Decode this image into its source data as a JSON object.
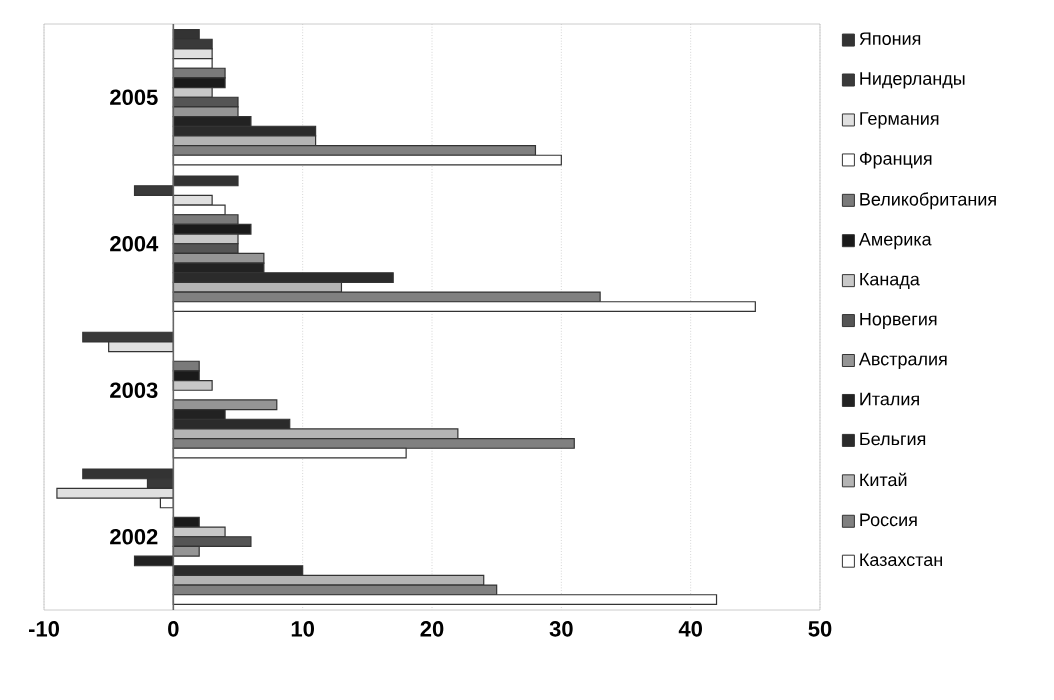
{
  "chart_data": {
    "type": "bar",
    "orientation": "horizontal",
    "categories": [
      "2005",
      "2004",
      "2003",
      "2002"
    ],
    "xlim": [
      -10,
      50
    ],
    "xticks": [
      -10,
      0,
      10,
      20,
      30,
      40,
      50
    ],
    "grid": "x",
    "legend": "right",
    "series": [
      {
        "name": "Япония",
        "color": "#333333",
        "values": [
          2,
          5,
          null,
          -7
        ]
      },
      {
        "name": "Нидерланды",
        "color": "#3a3a3a",
        "values": [
          3,
          -3,
          -7,
          -2
        ]
      },
      {
        "name": "Германия",
        "color": "#e0e0e0",
        "values": [
          3,
          3,
          -5,
          -9
        ]
      },
      {
        "name": "Франция",
        "color": "#ffffff",
        "values": [
          3,
          4,
          null,
          -1
        ]
      },
      {
        "name": "Великобритания",
        "color": "#7a7a7a",
        "values": [
          4,
          5,
          2,
          null
        ]
      },
      {
        "name": "Америка",
        "color": "#1a1a1a",
        "values": [
          4,
          6,
          2,
          2
        ]
      },
      {
        "name": "Канада",
        "color": "#c8c8c8",
        "values": [
          3,
          5,
          3,
          4
        ]
      },
      {
        "name": "Норвегия",
        "color": "#555555",
        "values": [
          5,
          5,
          null,
          6
        ]
      },
      {
        "name": "Австралия",
        "color": "#959595",
        "values": [
          5,
          7,
          8,
          2
        ]
      },
      {
        "name": "Италия",
        "color": "#222222",
        "values": [
          6,
          7,
          4,
          -3
        ]
      },
      {
        "name": "Бельгия",
        "color": "#2b2b2b",
        "values": [
          11,
          17,
          9,
          10
        ]
      },
      {
        "name": "Китай",
        "color": "#b4b4b4",
        "values": [
          11,
          13,
          22,
          24
        ]
      },
      {
        "name": "Россия",
        "color": "#808080",
        "values": [
          28,
          33,
          31,
          25
        ]
      },
      {
        "name": "Казахстан",
        "color": "#ffffff",
        "values": [
          30,
          45,
          18,
          42
        ]
      }
    ]
  }
}
